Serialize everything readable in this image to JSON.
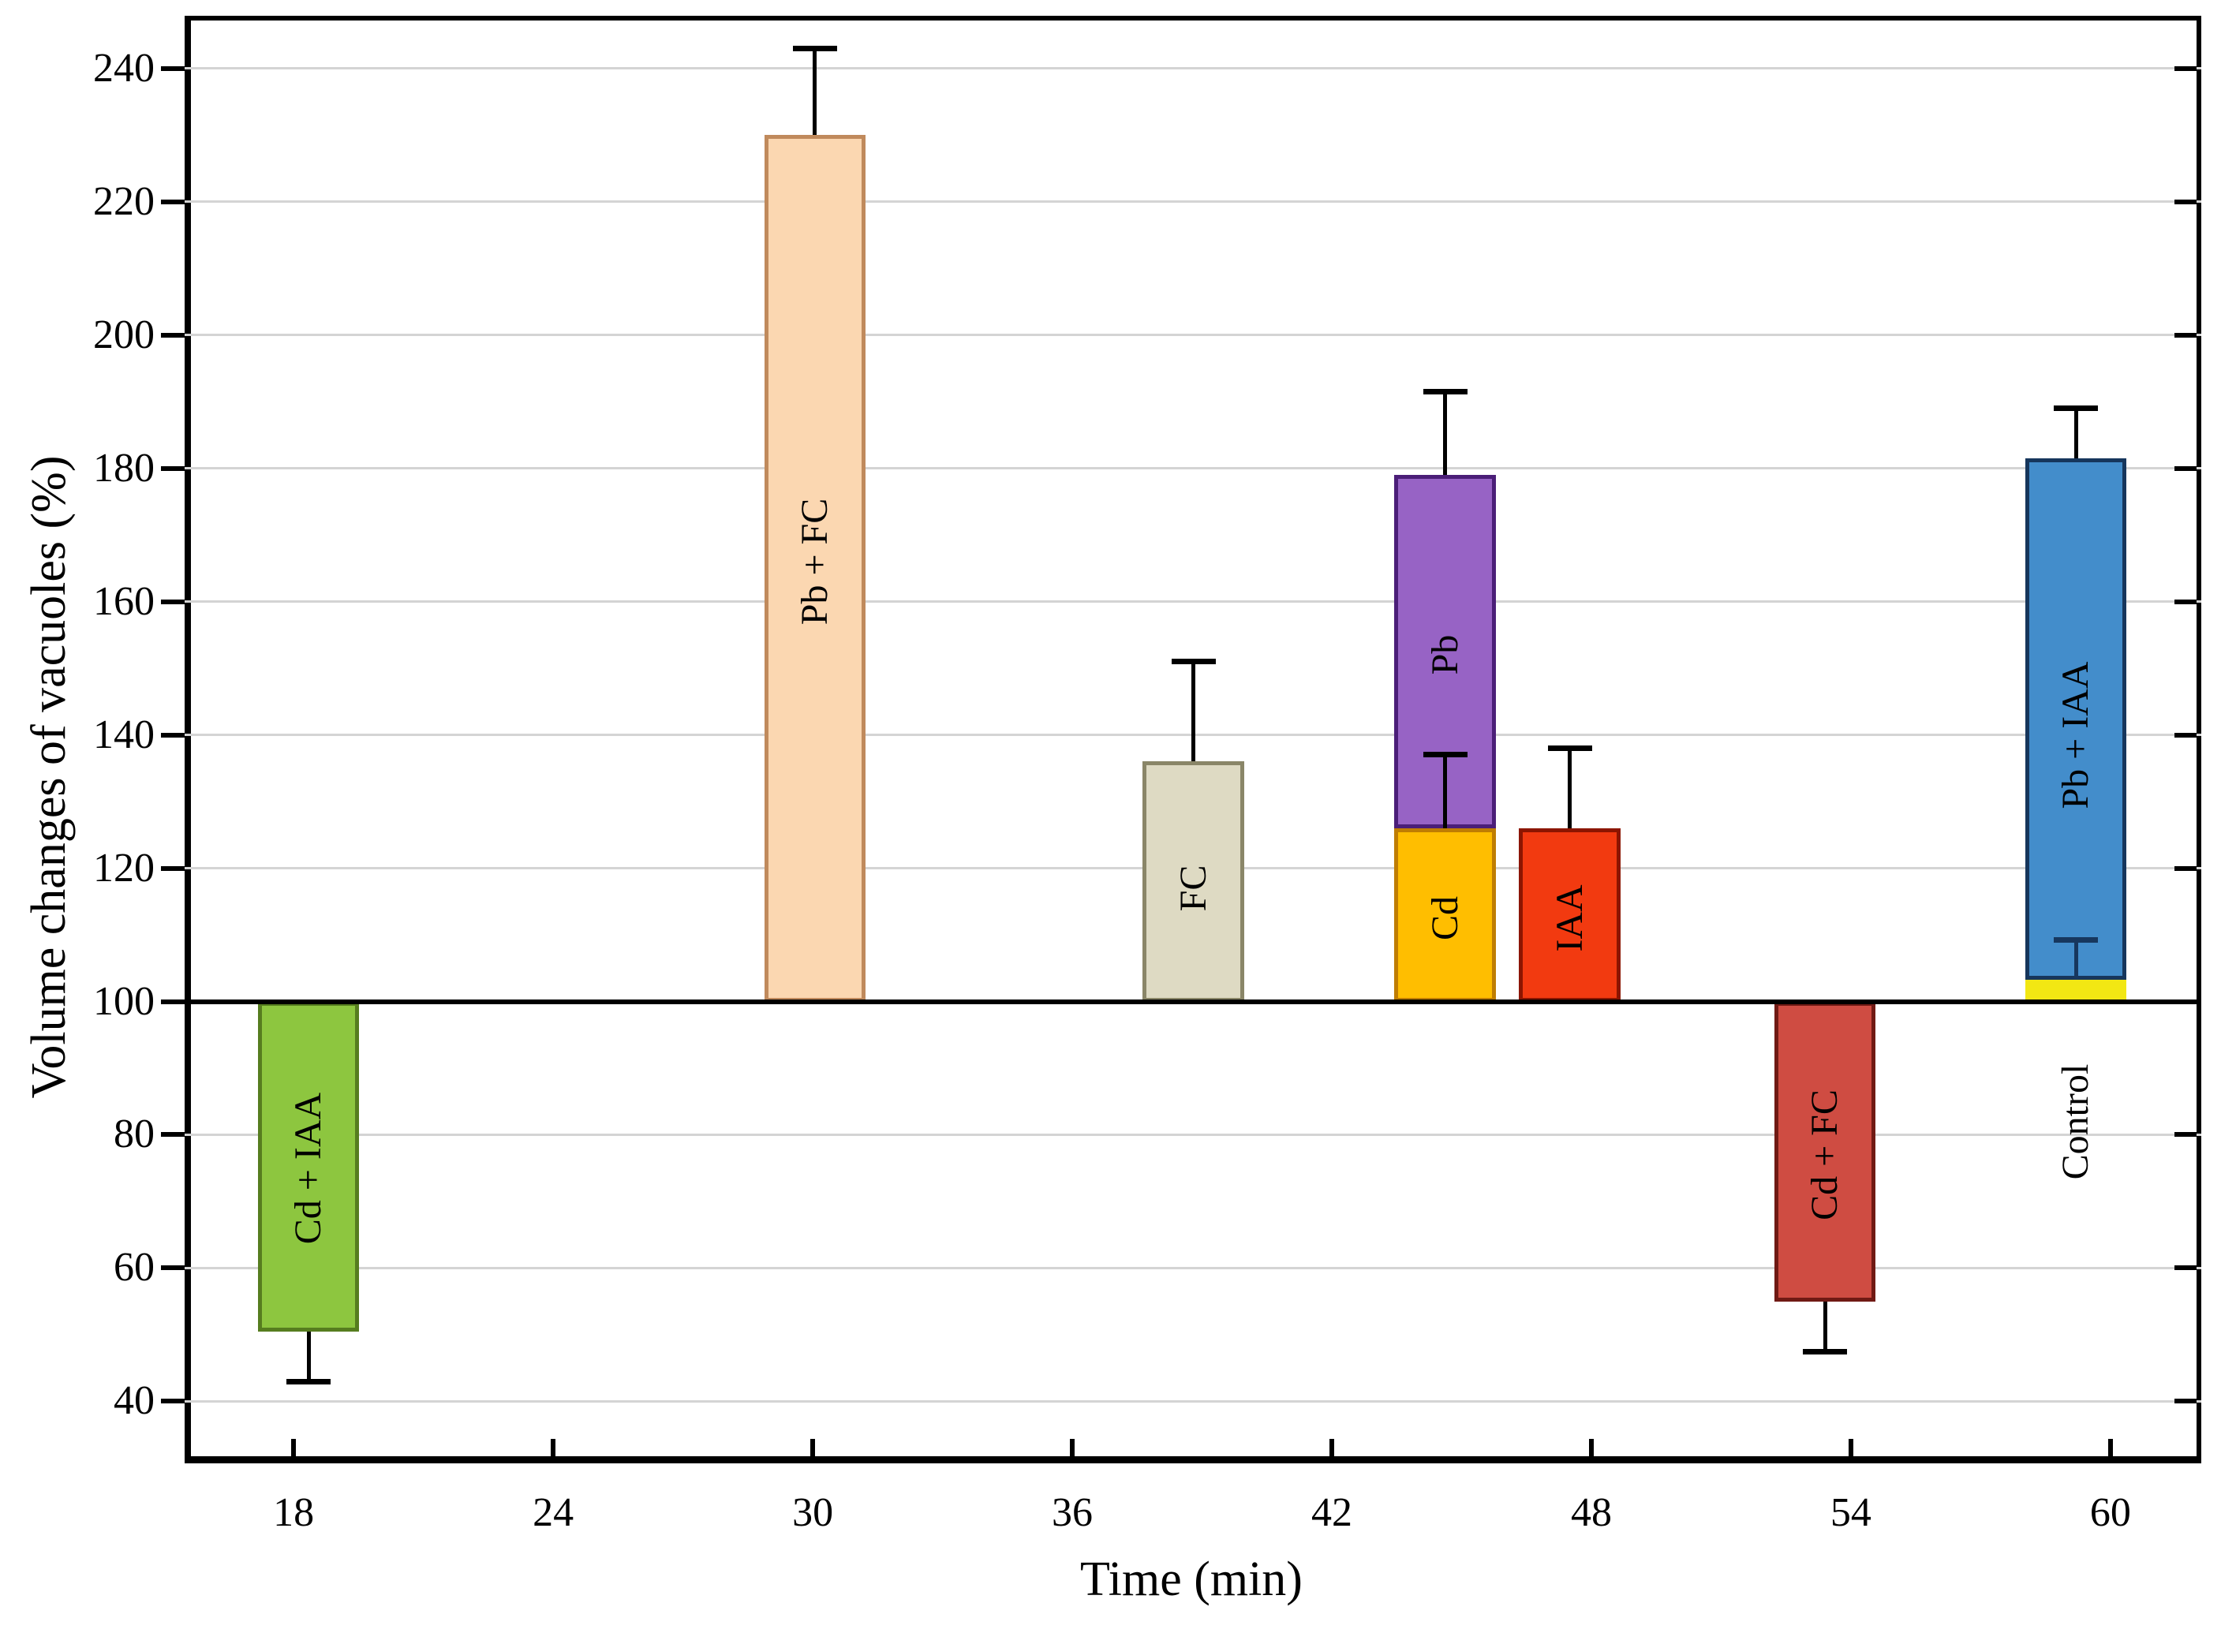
{
  "chart_data": {
    "type": "bar",
    "title": "",
    "xlabel": "Time (min)",
    "ylabel": "Volume changes of vacuoles (%)",
    "baseline": 100,
    "grid": true,
    "grid_color": "#d4d4d4",
    "x_axis": {
      "min": 15.48,
      "max": 62.1,
      "ticks": [
        18,
        24,
        30,
        36,
        42,
        48,
        54,
        60
      ]
    },
    "y_axis": {
      "min": 30.7,
      "max": 247.9,
      "ticks": [
        40,
        60,
        80,
        100,
        120,
        140,
        160,
        180,
        200,
        220,
        240
      ]
    },
    "bar_width_min": 2.34,
    "bars": [
      {
        "name": "Cd + IAA",
        "time": 18.35,
        "segments": [
          {
            "label": "Cd + IAA",
            "from": 100,
            "to": 50.5,
            "fill": "#8dc63f",
            "border": "#567d1f",
            "label_at": 75
          }
        ],
        "errors": [
          {
            "from": 50.5,
            "to": 43,
            "color": "#000000"
          }
        ]
      },
      {
        "name": "Pb + FC",
        "time": 30.05,
        "segments": [
          {
            "label": "Pb + FC",
            "from": 100,
            "to": 230,
            "fill": "#fbd7b1",
            "border": "#c08a5c",
            "label_at": 166
          }
        ],
        "errors": [
          {
            "from": 230,
            "to": 243,
            "color": "#000000"
          }
        ]
      },
      {
        "name": "FC",
        "time": 38.8,
        "segments": [
          {
            "label": "FC",
            "from": 100,
            "to": 136,
            "fill": "#dedac3",
            "border": "#8a8668",
            "label_at": 117
          }
        ],
        "errors": [
          {
            "from": 136,
            "to": 151,
            "color": "#000000"
          }
        ]
      },
      {
        "name": "Cd with Pb stacked",
        "time": 44.62,
        "segments": [
          {
            "label": "Cd",
            "from": 100,
            "to": 126,
            "fill": "#ffbe00",
            "border": "#bf7d02",
            "label_at": 112.5
          },
          {
            "label": "Pb",
            "from": 126,
            "to": 179,
            "fill": "#9763c5",
            "border": "#4b1e78",
            "label_at": 152
          }
        ],
        "errors": [
          {
            "from": 126,
            "to": 137,
            "color": "#000000"
          },
          {
            "from": 179,
            "to": 191.5,
            "color": "#000000"
          }
        ]
      },
      {
        "name": "IAA",
        "time": 47.5,
        "segments": [
          {
            "label": "IAA",
            "from": 100,
            "to": 126,
            "fill": "#f23a10",
            "border": "#8c1500",
            "label_at": 112.5
          }
        ],
        "errors": [
          {
            "from": 126,
            "to": 138,
            "color": "#000000"
          }
        ]
      },
      {
        "name": "Cd + FC",
        "time": 53.4,
        "segments": [
          {
            "label": "Cd + FC",
            "from": 100,
            "to": 55,
            "fill": "#cf4c42",
            "border": "#701a14",
            "label_at": 77
          }
        ],
        "errors": [
          {
            "from": 55,
            "to": 47.5,
            "color": "#000000"
          }
        ]
      },
      {
        "name": "Control with Pb + IAA stacked",
        "time": 59.2,
        "segments": [
          {
            "label": "",
            "from": 100,
            "to": 103.2,
            "fill": "#f2e713",
            "border": "#f2e713"
          },
          {
            "label": "Pb + IAA",
            "from": 103.2,
            "to": 181.5,
            "fill": "#438dcb",
            "border": "#16365c",
            "label_at": 140
          }
        ],
        "errors": [
          {
            "from": 103.2,
            "to": 109.2,
            "color": "#17375e"
          },
          {
            "from": 181.5,
            "to": 189,
            "color": "#000000"
          }
        ],
        "outside_label": {
          "text": "Control",
          "at": 82
        }
      }
    ]
  }
}
